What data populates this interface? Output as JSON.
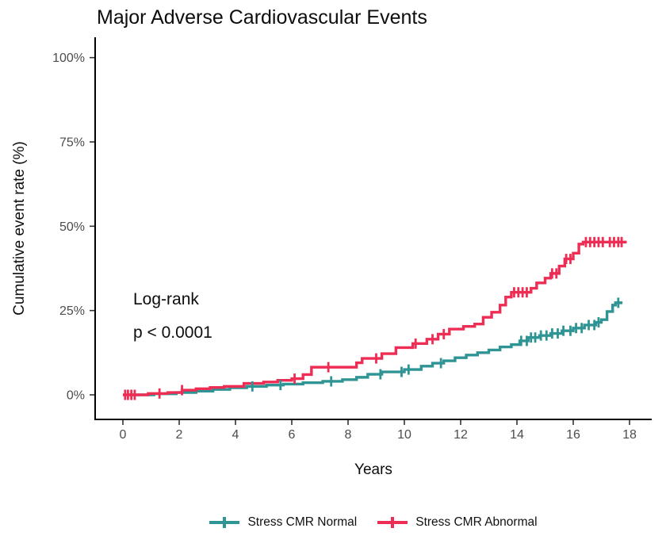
{
  "chart_data": {
    "type": "line",
    "subtype": "kaplan-meier-step",
    "title": "Major Adverse Cardiovascular Events",
    "xlabel": "Years",
    "ylabel": "Cumulative event rate (%)",
    "xlim": [
      0,
      18.8
    ],
    "ylim": [
      0,
      100
    ],
    "x_ticks": [
      0,
      2,
      4,
      6,
      8,
      10,
      12,
      14,
      16,
      18
    ],
    "y_ticks": [
      0,
      25,
      50,
      75,
      100
    ],
    "y_tick_suffix": "%",
    "grid": false,
    "legend_position": "bottom",
    "annotation": {
      "line1": "Log-rank",
      "line2": "p < 0.0001"
    },
    "series": [
      {
        "name": "Stress CMR Normal",
        "color": "#2E9494",
        "steps": [
          [
            0.2,
            0
          ],
          [
            1.1,
            0.3
          ],
          [
            1.9,
            0.7
          ],
          [
            2.6,
            1.1
          ],
          [
            3.2,
            1.6
          ],
          [
            3.8,
            2.1
          ],
          [
            4.4,
            2.5
          ],
          [
            5.1,
            2.9
          ],
          [
            5.7,
            3.2
          ],
          [
            6.4,
            3.6
          ],
          [
            7.1,
            4
          ],
          [
            7.8,
            4.5
          ],
          [
            8.3,
            5.2
          ],
          [
            8.7,
            6.1
          ],
          [
            9.2,
            6.8
          ],
          [
            10,
            7.5
          ],
          [
            10.6,
            8.5
          ],
          [
            11,
            9.4
          ],
          [
            11.4,
            10.1
          ],
          [
            11.8,
            11
          ],
          [
            12.2,
            11.8
          ],
          [
            12.6,
            12.5
          ],
          [
            13,
            13.3
          ],
          [
            13.4,
            14.2
          ],
          [
            13.8,
            14.9
          ],
          [
            14.1,
            16
          ],
          [
            14.4,
            17
          ],
          [
            14.8,
            17.6
          ],
          [
            15.2,
            18.2
          ],
          [
            15.6,
            19
          ],
          [
            16,
            19.8
          ],
          [
            16.4,
            20.7
          ],
          [
            16.8,
            21.5
          ],
          [
            17,
            22.3
          ],
          [
            17.2,
            24.7
          ],
          [
            17.4,
            26.6
          ],
          [
            17.5,
            27.3
          ],
          [
            17.75,
            27.3
          ]
        ],
        "censor_times": [
          4.6,
          5.6,
          7.4,
          9.15,
          9.9,
          10.15,
          11.3,
          14.15,
          14.35,
          14.5,
          14.65,
          14.85,
          15.05,
          15.25,
          15.45,
          15.65,
          15.9,
          16.1,
          16.3,
          16.55,
          16.75,
          16.9,
          17.6
        ]
      },
      {
        "name": "Stress CMR Abnormal",
        "color": "#EE2D55",
        "steps": [
          [
            0,
            0
          ],
          [
            0.9,
            0.4
          ],
          [
            1.6,
            0.7
          ],
          [
            2.1,
            1.4
          ],
          [
            2.6,
            1.8
          ],
          [
            3.1,
            2.2
          ],
          [
            3.6,
            2.5
          ],
          [
            4.3,
            3.4
          ],
          [
            5,
            3.8
          ],
          [
            5.5,
            4.3
          ],
          [
            6,
            4.8
          ],
          [
            6.4,
            6
          ],
          [
            6.7,
            8.2
          ],
          [
            8.3,
            9.5
          ],
          [
            8.5,
            10.8
          ],
          [
            9.2,
            12.2
          ],
          [
            9.7,
            14
          ],
          [
            10.3,
            15.2
          ],
          [
            10.8,
            16.5
          ],
          [
            11.2,
            18
          ],
          [
            11.6,
            19.5
          ],
          [
            12.1,
            20.3
          ],
          [
            12.5,
            21
          ],
          [
            12.8,
            23
          ],
          [
            13.1,
            24.5
          ],
          [
            13.4,
            26.6
          ],
          [
            13.6,
            29
          ],
          [
            13.8,
            30.4
          ],
          [
            14.5,
            31.6
          ],
          [
            14.7,
            33.2
          ],
          [
            15,
            34.6
          ],
          [
            15.2,
            36
          ],
          [
            15.5,
            38.2
          ],
          [
            15.7,
            40.3
          ],
          [
            16,
            42
          ],
          [
            16.2,
            44.7
          ],
          [
            16.35,
            45.3
          ],
          [
            17.9,
            45.3
          ]
        ],
        "censor_times": [
          0.08,
          0.18,
          0.3,
          0.42,
          1.3,
          2.1,
          6.1,
          7.3,
          9,
          10.4,
          11,
          11.4,
          13.9,
          14.05,
          14.2,
          14.35,
          15.25,
          15.4,
          15.75,
          15.9,
          16.45,
          16.6,
          16.75,
          16.9,
          17.05,
          17.3,
          17.45,
          17.6,
          17.72
        ]
      }
    ]
  }
}
